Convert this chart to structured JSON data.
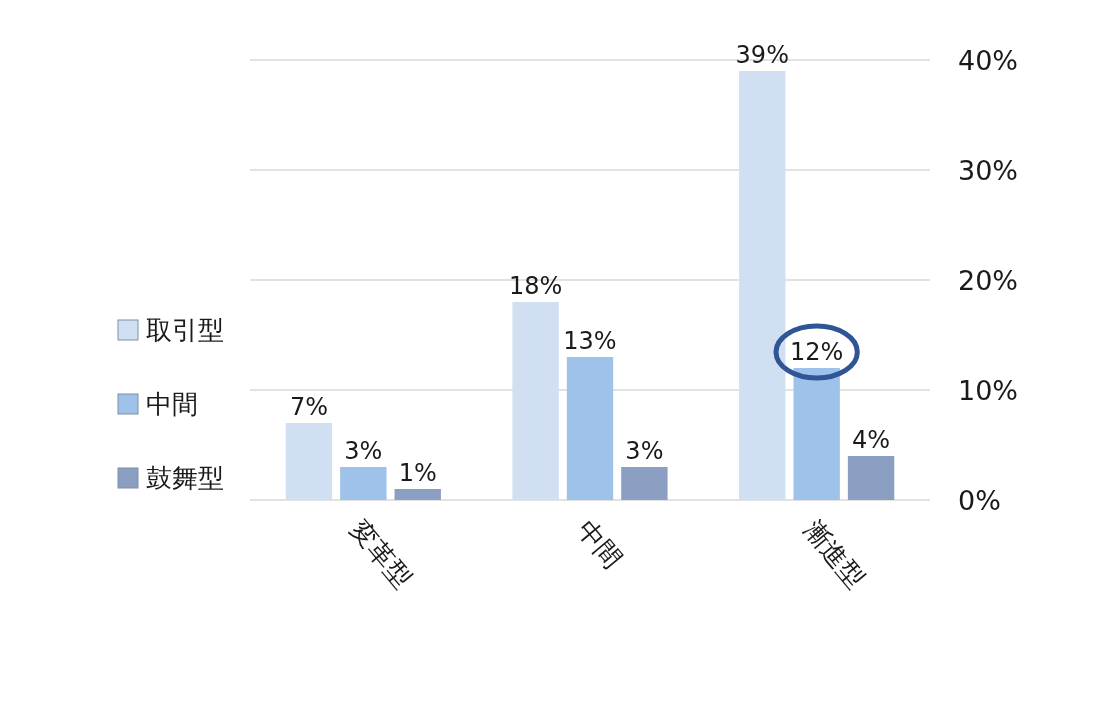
{
  "chart_data": {
    "type": "bar",
    "categories": [
      "変革型",
      "中間",
      "漸進型"
    ],
    "series": [
      {
        "name": "取引型",
        "color": "#d0dff2",
        "values": [
          7,
          18,
          39
        ],
        "value_labels": [
          "7%",
          "18%",
          "39%"
        ]
      },
      {
        "name": "中間",
        "color": "#9ec2ea",
        "values": [
          3,
          13,
          12
        ],
        "value_labels": [
          "3%",
          "13%",
          "12%"
        ]
      },
      {
        "name": "鼓舞型",
        "color": "#8a9fc2",
        "values": [
          1,
          3,
          4
        ],
        "value_labels": [
          "1%",
          "3%",
          "4%"
        ]
      }
    ],
    "ylim": [
      0,
      40
    ],
    "yticks": [
      {
        "value": 0,
        "label": "0%"
      },
      {
        "value": 10,
        "label": "10%"
      },
      {
        "value": 20,
        "label": "20%"
      },
      {
        "value": 30,
        "label": "30%"
      },
      {
        "value": 40,
        "label": "40%"
      }
    ],
    "grid": "y",
    "legend": "left"
  }
}
